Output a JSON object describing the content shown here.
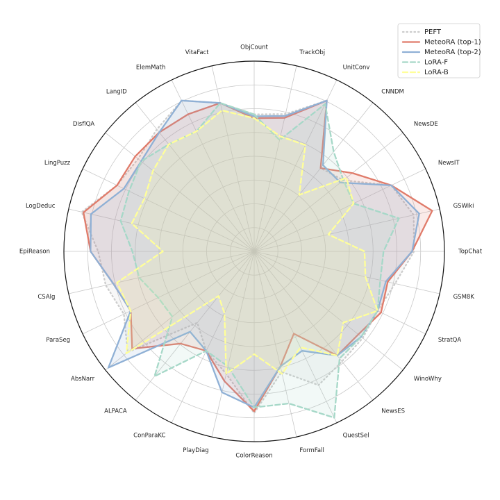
{
  "chart_data": {
    "type": "radar",
    "categories": [
      "ObjCount",
      "TrackObj",
      "UnitConv",
      "CNNDM",
      "NewsDE",
      "NewsIT",
      "GSWiki",
      "TopChat",
      "GSM8K",
      "StratQA",
      "WinoWhy",
      "NewsES",
      "QuestSel",
      "FormFall",
      "ColorReason",
      "PlayDiag",
      "ConParaKC",
      "ALPACA",
      "AbsNarr",
      "ParaSeg",
      "CSAlg",
      "EpiReason",
      "LogDeduc",
      "LingPuzz",
      "DisflQA",
      "LangID",
      "ElemMath",
      "VitaFact"
    ],
    "rlim": [
      0,
      1
    ],
    "grid": true,
    "legend_position": "top-right",
    "series": [
      {
        "name": "PEFT",
        "color": "#cccccc",
        "style": "dotted",
        "values": [
          0.72,
          0.74,
          0.88,
          0.56,
          0.6,
          0.8,
          0.86,
          0.84,
          0.76,
          0.72,
          0.73,
          0.74,
          0.78,
          0.65,
          0.85,
          0.66,
          0.58,
          0.48,
          0.85,
          0.76,
          0.8,
          0.82,
          0.93,
          0.8,
          0.78,
          0.82,
          0.88,
          0.8
        ]
      },
      {
        "name": "MeteoRA (top-1)",
        "color": "#e07b6a",
        "style": "solid",
        "values": [
          0.7,
          0.72,
          0.88,
          0.56,
          0.66,
          0.8,
          0.96,
          0.83,
          0.72,
          0.74,
          0.7,
          0.7,
          0.48,
          0.62,
          0.84,
          0.7,
          0.58,
          0.62,
          0.82,
          0.72,
          0.76,
          0.86,
          0.92,
          0.8,
          0.8,
          0.8,
          0.8,
          0.8
        ]
      },
      {
        "name": "MeteoRA (top-2)",
        "color": "#8fb0d5",
        "style": "solid",
        "values": [
          0.71,
          0.73,
          0.88,
          0.58,
          0.58,
          0.8,
          0.89,
          0.83,
          0.71,
          0.72,
          0.72,
          0.7,
          0.58,
          0.62,
          0.82,
          0.76,
          0.58,
          0.54,
          0.98,
          0.72,
          0.76,
          0.86,
          0.88,
          0.76,
          0.76,
          0.8,
          0.88,
          0.8
        ]
      },
      {
        "name": "LoRA-F",
        "color": "#a6d8c8",
        "style": "dashed",
        "values": [
          0.72,
          0.6,
          0.86,
          0.67,
          0.6,
          0.58,
          0.78,
          0.68,
          0.68,
          0.72,
          0.72,
          0.72,
          0.97,
          0.82,
          0.82,
          0.62,
          0.58,
          0.84,
          0.55,
          0.56,
          0.62,
          0.64,
          0.72,
          0.73,
          0.76,
          0.72,
          0.7,
          0.8
        ]
      },
      {
        "name": "LoRA-B",
        "color": "#ffff99",
        "style": "dashed",
        "values": [
          0.7,
          0.62,
          0.62,
          0.38,
          0.62,
          0.58,
          0.4,
          0.58,
          0.6,
          0.72,
          0.6,
          0.7,
          0.56,
          0.66,
          0.54,
          0.66,
          0.36,
          0.3,
          0.86,
          0.72,
          0.74,
          0.48,
          0.66,
          0.64,
          0.68,
          0.72,
          0.7,
          0.76
        ]
      }
    ]
  }
}
